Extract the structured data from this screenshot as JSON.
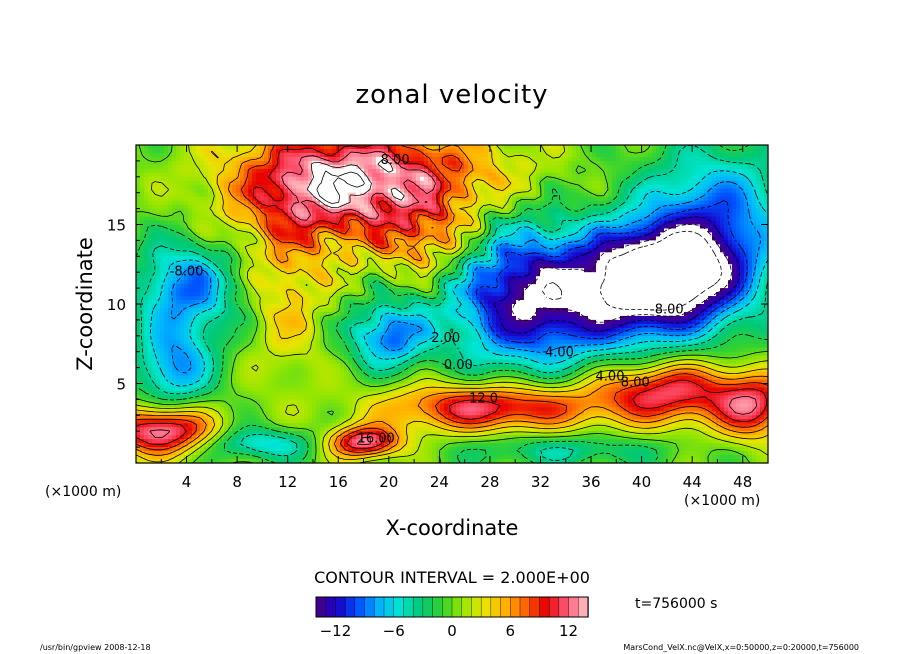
{
  "chart_data": {
    "type": "heatmap",
    "title": "zonal velocity",
    "xlabel": "X-coordinate",
    "ylabel": "Z-coordinate",
    "x_unit_note": "(×1000 m)",
    "z_unit_note": "(×1000 m)",
    "xlim": [
      0,
      50
    ],
    "ylim": [
      0,
      20
    ],
    "x_ticks": [
      4,
      8,
      12,
      16,
      20,
      24,
      28,
      32,
      36,
      40,
      44,
      48
    ],
    "x_tick_labels": [
      "4",
      "8",
      "12",
      "16",
      "20",
      "24",
      "28",
      "32",
      "36",
      "40",
      "44",
      "48"
    ],
    "y_ticks": [
      5,
      10,
      15
    ],
    "y_tick_labels": [
      "5",
      "10",
      "15"
    ],
    "contour_interval_text": "CONTOUR INTERVAL = 2.000E+00",
    "contour_labels": [
      {
        "text": "8.00",
        "x": 20.5,
        "z": 18.8
      },
      {
        "text": "-8.00",
        "x": 4.0,
        "z": 11.8
      },
      {
        "text": "-8.00",
        "x": 42.0,
        "z": 9.4
      },
      {
        "text": "4.00",
        "x": 33.5,
        "z": 6.7
      },
      {
        "text": "4.00",
        "x": 37.5,
        "z": 5.2
      },
      {
        "text": "8.00",
        "x": 39.5,
        "z": 4.8
      },
      {
        "text": "12.0",
        "x": 27.5,
        "z": 3.8
      },
      {
        "text": "2.00",
        "x": 24.5,
        "z": 7.6
      },
      {
        "text": "0.00",
        "x": 25.5,
        "z": 5.9
      },
      {
        "text": "16.00",
        "x": 19.0,
        "z": 1.3
      }
    ],
    "colorbar": {
      "min": -14,
      "max": 14,
      "ticks": [
        -12,
        -6,
        0,
        6,
        12
      ],
      "tick_labels": [
        "−12",
        "−6",
        "0",
        "6",
        "12"
      ]
    },
    "time_label": "t=756000 s",
    "palette": [
      "#4b0082",
      "#1a00c8",
      "#0050ff",
      "#00b4ff",
      "#00e6d2",
      "#00c878",
      "#32d232",
      "#96e600",
      "#e6e600",
      "#ffb400",
      "#ff6400",
      "#e60000",
      "#ff5a78",
      "#ffc8c8"
    ]
  },
  "footer": {
    "left": "/usr/bin/gpview  2008-12-18",
    "right": "MarsCond_VelX.nc@VelX,x=0:50000,z=0:20000,t=756000"
  }
}
